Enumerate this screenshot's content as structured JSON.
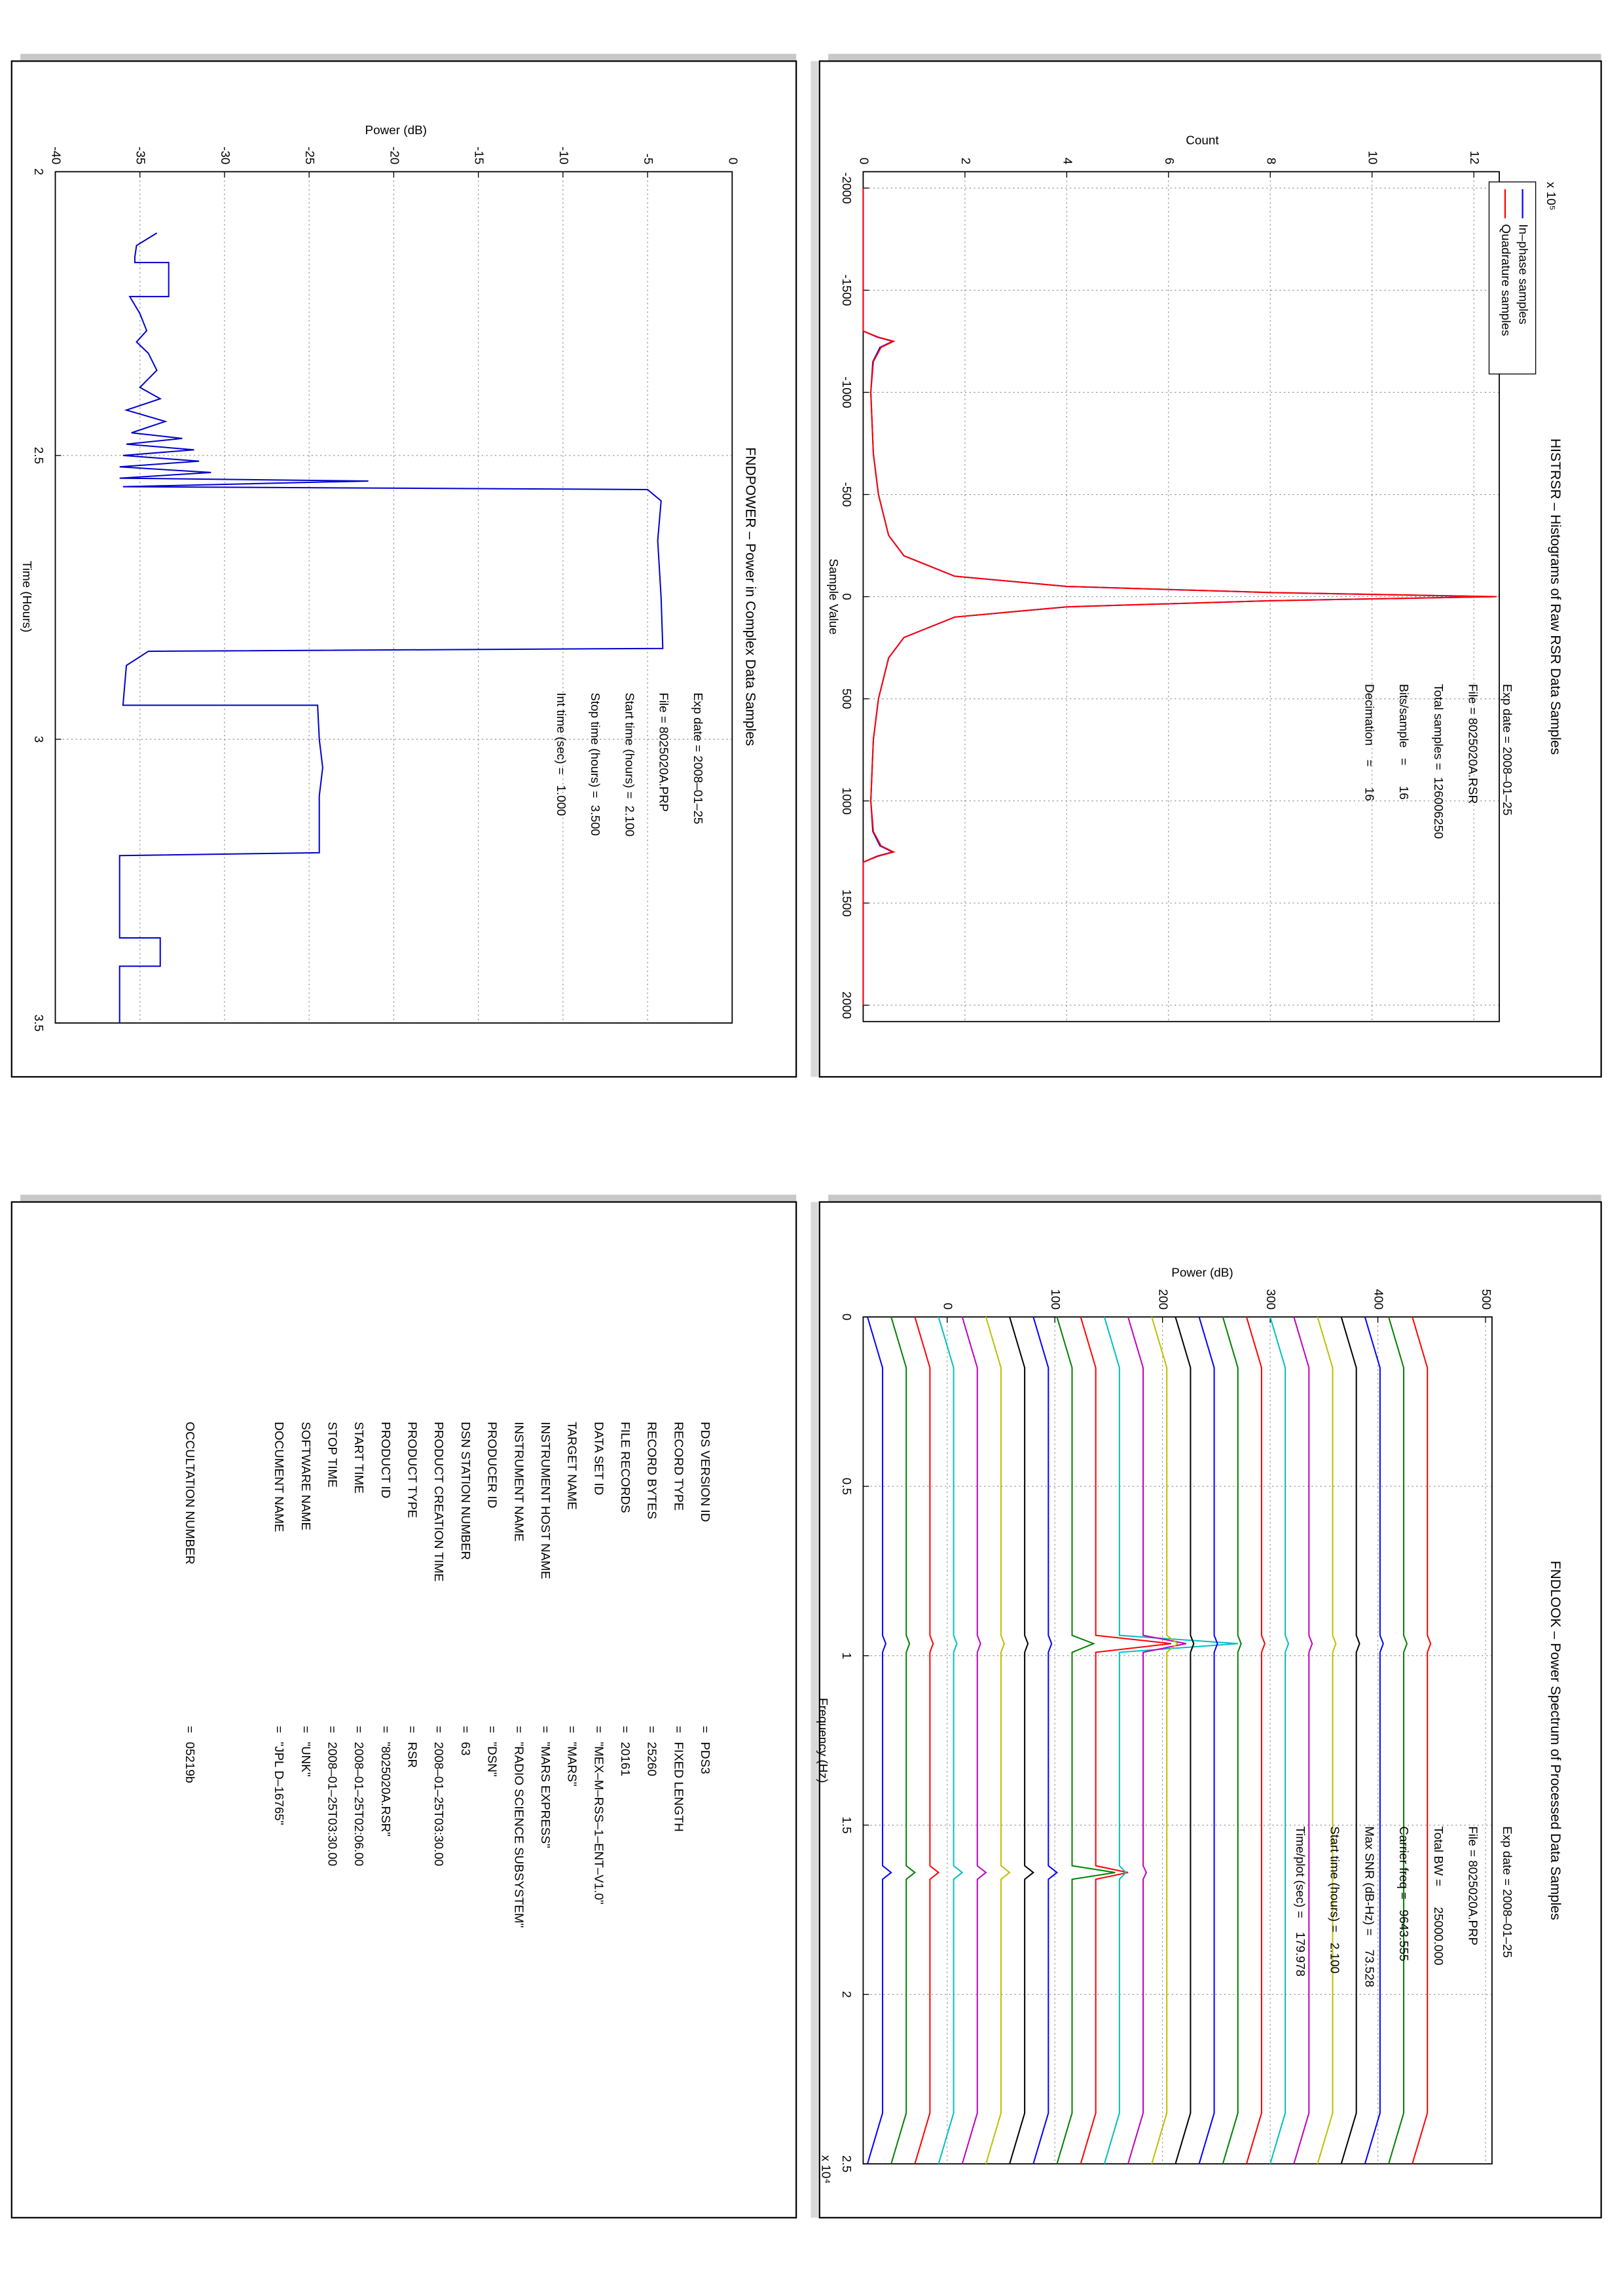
{
  "chart_data": [
    {
      "type": "line",
      "title": "HISTRSR – Histograms of Raw RSR Data Samples",
      "xlabel": "Sample Value",
      "ylabel": "Count",
      "y_multiplier": "x 10⁵",
      "x": [
        -2000,
        -1300,
        -1270,
        -1250,
        -1220,
        -1150,
        -1000,
        -700,
        -500,
        -300,
        -200,
        -100,
        -50,
        -20,
        0,
        20,
        50,
        100,
        200,
        300,
        500,
        700,
        1000,
        1150,
        1220,
        1250,
        1270,
        1300,
        2000
      ],
      "series": [
        {
          "name": "In–phase samples",
          "color": "#0000ff",
          "values": [
            0,
            0,
            0.28,
            0.58,
            0.33,
            0.19,
            0.15,
            0.2,
            0.3,
            0.5,
            0.8,
            1.8,
            4,
            8,
            12.4,
            8,
            4,
            1.8,
            0.8,
            0.5,
            0.3,
            0.2,
            0.15,
            0.19,
            0.33,
            0.58,
            0.28,
            0,
            0
          ]
        },
        {
          "name": "Quadrature samples",
          "color": "#ff0000",
          "values": [
            0,
            0,
            0.3,
            0.6,
            0.35,
            0.2,
            0.15,
            0.2,
            0.3,
            0.5,
            0.8,
            1.8,
            4,
            8,
            12.45,
            8,
            4,
            1.8,
            0.8,
            0.5,
            0.3,
            0.2,
            0.15,
            0.2,
            0.35,
            0.6,
            0.3,
            0,
            0
          ]
        }
      ],
      "xlim": [
        -2080,
        2080
      ],
      "ylim": [
        0,
        12.5
      ],
      "xticks": [
        -2000,
        -1500,
        -1000,
        -500,
        0,
        500,
        1000,
        1500,
        2000
      ],
      "yticks": [
        0,
        2,
        4,
        6,
        8,
        10,
        12
      ],
      "grid": true,
      "legend": "northwest",
      "annotations": [
        "Exp date = 2008–01–25",
        "File = 8025020A.RSR",
        "Total samples =  126006250",
        "Bits/sample   =      16",
        "Decimation    =      16"
      ]
    },
    {
      "type": "line",
      "title": "FNDPOWER – Power in Complex Data Samples",
      "xlabel": "Time (Hours)",
      "ylabel": "Power (dB)",
      "x": [
        2.108,
        2.13,
        2.15,
        2.16,
        2.16,
        2.22,
        2.22,
        2.25,
        2.28,
        2.3,
        2.32,
        2.35,
        2.38,
        2.4,
        2.42,
        2.44,
        2.46,
        2.47,
        2.48,
        2.49,
        2.5,
        2.51,
        2.52,
        2.53,
        2.54,
        2.545,
        2.555,
        2.56,
        2.58,
        2.65,
        2.75,
        2.84,
        2.845,
        2.87,
        2.94,
        2.94,
        3.0,
        3.05,
        3.1,
        3.2,
        3.205,
        3.35,
        3.35,
        3.4,
        3.4,
        3.5
      ],
      "series": [
        {
          "color": "#0000cc",
          "values": [
            -34.0,
            -35.2,
            -35.3,
            -35.3,
            -33.3,
            -33.3,
            -35.6,
            -35.0,
            -34.6,
            -35.2,
            -34.5,
            -34.0,
            -35.0,
            -33.8,
            -35.8,
            -33.5,
            -35.5,
            -32.5,
            -35.8,
            -31.8,
            -36.0,
            -31.5,
            -36.2,
            -30.8,
            -36.2,
            -21.5,
            -36.0,
            -5.0,
            -4.2,
            -4.4,
            -4.2,
            -4.1,
            -34.5,
            -35.8,
            -36.0,
            -24.5,
            -24.4,
            -24.2,
            -24.4,
            -24.4,
            -36.2,
            -36.2,
            -33.8,
            -33.8,
            -36.2,
            -36.2
          ]
        }
      ],
      "xlim": [
        2,
        3.5
      ],
      "ylim": [
        -40,
        0
      ],
      "xticks": [
        2,
        2.5,
        3,
        3.5
      ],
      "yticks": [
        -40,
        -35,
        -30,
        -25,
        -20,
        -15,
        -10,
        -5,
        0
      ],
      "grid": true,
      "annotations": [
        "Exp date = 2008–01–25",
        "File = 8025020A.PRP",
        "Start time (hours) =  2.100",
        "Stop time (hours) =  3.500",
        "Int time (sec) =   1.000"
      ]
    },
    {
      "type": "line",
      "title": "FNDLOOK – Power Spectrum of Processed Data Samples",
      "xlabel": "Frequency (Hz)",
      "ylabel": "Power (dB)",
      "x_multiplier": "x 10⁴",
      "x": [
        0,
        0.15,
        0.94,
        0.9643,
        0.99,
        1.62,
        1.64,
        1.66,
        2.35,
        2.5
      ],
      "series": [
        {
          "color": "#0000ff",
          "values": [
            -74,
            -60,
            -60,
            -57,
            -60,
            -60,
            -52,
            -60,
            -60,
            -74
          ]
        },
        {
          "color": "#008000",
          "values": [
            -52,
            -38,
            -38,
            -35,
            -38,
            -38,
            -30,
            -38,
            -38,
            -52
          ]
        },
        {
          "color": "#ff0000",
          "values": [
            -30,
            -16,
            -16,
            -13,
            -16,
            -16,
            -8,
            -16,
            -16,
            -30
          ]
        },
        {
          "color": "#00bfbf",
          "values": [
            -8,
            6,
            6,
            9,
            6,
            6,
            14,
            6,
            6,
            -8
          ]
        },
        {
          "color": "#bf00bf",
          "values": [
            14,
            28,
            28,
            31,
            28,
            28,
            36,
            28,
            28,
            14
          ]
        },
        {
          "color": "#bfbf00",
          "values": [
            36,
            50,
            50,
            53,
            50,
            50,
            58,
            50,
            50,
            36
          ]
        },
        {
          "color": "#000000",
          "values": [
            58,
            72,
            72,
            75,
            72,
            72,
            80,
            72,
            72,
            58
          ]
        },
        {
          "color": "#0000ff",
          "values": [
            80,
            94,
            94,
            97,
            94,
            94,
            102,
            94,
            94,
            80
          ]
        },
        {
          "color": "#008000",
          "values": [
            102,
            116,
            116,
            136,
            116,
            116,
            156,
            116,
            116,
            102
          ]
        },
        {
          "color": "#ff0000",
          "values": [
            124,
            138,
            138,
            208,
            138,
            138,
            168,
            138,
            138,
            124
          ]
        },
        {
          "color": "#00bfbf",
          "values": [
            146,
            160,
            160,
            270,
            160,
            160,
            166,
            160,
            160,
            146
          ]
        },
        {
          "color": "#bf00bf",
          "values": [
            168,
            182,
            182,
            222,
            182,
            182,
            185,
            182,
            182,
            168
          ]
        },
        {
          "color": "#bfbf00",
          "values": [
            190,
            204,
            204,
            214,
            204,
            204,
            204,
            204,
            204,
            190
          ]
        },
        {
          "color": "#000000",
          "values": [
            212,
            226,
            226,
            229,
            226,
            226,
            226,
            226,
            226,
            212
          ]
        },
        {
          "color": "#0000ff",
          "values": [
            234,
            248,
            248,
            251,
            248,
            248,
            248,
            248,
            248,
            234
          ]
        },
        {
          "color": "#008000",
          "values": [
            256,
            270,
            270,
            273,
            270,
            270,
            270,
            270,
            270,
            256
          ]
        },
        {
          "color": "#ff0000",
          "values": [
            278,
            292,
            292,
            295,
            292,
            292,
            292,
            292,
            292,
            278
          ]
        },
        {
          "color": "#00bfbf",
          "values": [
            300,
            314,
            314,
            317,
            314,
            314,
            314,
            314,
            314,
            300
          ]
        },
        {
          "color": "#bf00bf",
          "values": [
            322,
            336,
            336,
            339,
            336,
            336,
            336,
            336,
            336,
            322
          ]
        },
        {
          "color": "#bfbf00",
          "values": [
            344,
            358,
            358,
            361,
            358,
            358,
            358,
            358,
            358,
            344
          ]
        },
        {
          "color": "#000000",
          "values": [
            366,
            380,
            380,
            383,
            380,
            380,
            380,
            380,
            380,
            366
          ]
        },
        {
          "color": "#0000ff",
          "values": [
            388,
            402,
            402,
            405,
            402,
            402,
            402,
            402,
            402,
            388
          ]
        },
        {
          "color": "#008000",
          "values": [
            410,
            424,
            424,
            427,
            424,
            424,
            424,
            424,
            424,
            410
          ]
        },
        {
          "color": "#ff0000",
          "values": [
            432,
            446,
            446,
            449,
            446,
            446,
            446,
            446,
            446,
            432
          ]
        }
      ],
      "xlim": [
        0,
        2.5
      ],
      "ylim": [
        -78,
        506
      ],
      "xticks": [
        0,
        0.5,
        1,
        1.5,
        2,
        2.5
      ],
      "yticks": [
        0,
        100,
        200,
        300,
        400,
        500
      ],
      "grid": true,
      "annotations": [
        "Exp date = 2008–01–25",
        "File = 8025020A.PRP",
        "Total BW =      25000.000",
        "Carrier freq =   9643.555",
        "Max SNR (dB-Hz) =    73.528",
        "Start time (hours) =   2.100",
        "Time/plot (sec) =    179.978"
      ]
    }
  ],
  "label_table": {
    "separator": "=",
    "rows": [
      [
        "PDS VERSION ID",
        "PDS3"
      ],
      [
        "RECORD TYPE",
        "FIXED LENGTH"
      ],
      [
        "RECORD BYTES",
        "25260"
      ],
      [
        "FILE RECORDS",
        "20161"
      ],
      [
        "DATA SET ID",
        "\"MEX–M–RSS–1–ENT–V1.0\""
      ],
      [
        "TARGET NAME",
        "\"MARS\""
      ],
      [
        "INSTRUMENT HOST NAME",
        "\"MARS EXPRESS\""
      ],
      [
        "INSTRUMENT NAME",
        "\"RADIO SCIENCE SUBSYSTEM\""
      ],
      [
        "PRODUCER ID",
        "\"DSN\""
      ],
      [
        "DSN STATION NUMBER",
        "63"
      ],
      [
        "PRODUCT CREATION TIME",
        "2008–01–25T03:30.00"
      ],
      [
        "PRODUCT TYPE",
        "RSR"
      ],
      [
        "PRODUCT ID",
        "\"8025020A.RSR\""
      ],
      [
        "START TIME",
        "2008–01–25T02:06.00"
      ],
      [
        "STOP TIME",
        "2008–01–25T03:30.00"
      ],
      [
        "SOFTWARE NAME",
        "\"UNK\""
      ],
      [
        "DOCUMENT NAME",
        "\"JPL D–16765\""
      ],
      [
        "OCCULTATION NUMBER",
        "05219b"
      ]
    ]
  }
}
